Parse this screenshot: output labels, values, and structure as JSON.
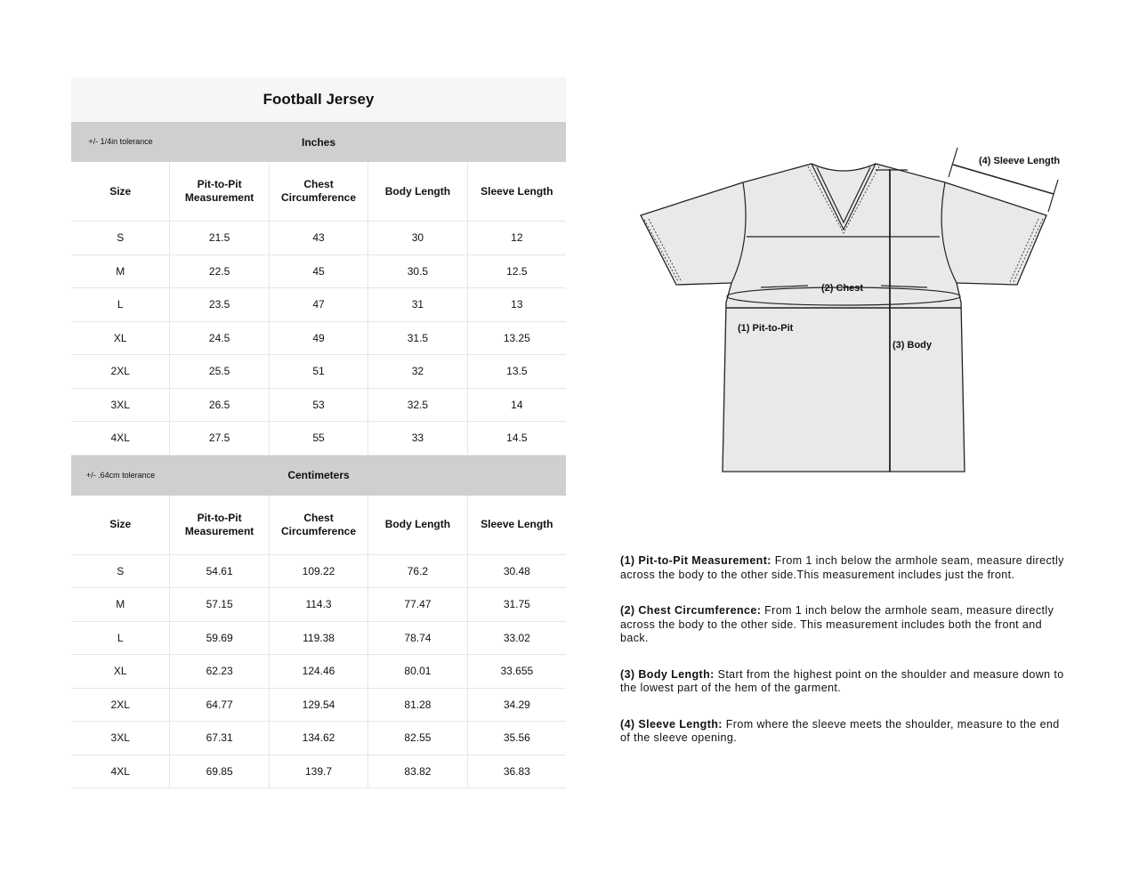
{
  "title": "Football Jersey",
  "columns": [
    "Size",
    "Pit-to-Pit Measurement",
    "Chest Circumference",
    "Body Length",
    "Sleeve Length"
  ],
  "inches": {
    "label": "Inches",
    "tolerance": "+/- 1/4in tolerance",
    "rows": [
      [
        "S",
        "21.5",
        "43",
        "30",
        "12"
      ],
      [
        "M",
        "22.5",
        "45",
        "30.5",
        "12.5"
      ],
      [
        "L",
        "23.5",
        "47",
        "31",
        "13"
      ],
      [
        "XL",
        "24.5",
        "49",
        "31.5",
        "13.25"
      ],
      [
        "2XL",
        "25.5",
        "51",
        "32",
        "13.5"
      ],
      [
        "3XL",
        "26.5",
        "53",
        "32.5",
        "14"
      ],
      [
        "4XL",
        "27.5",
        "55",
        "33",
        "14.5"
      ]
    ]
  },
  "cm": {
    "label": "Centimeters",
    "tolerance": "+/- .64cm tolerance",
    "rows": [
      [
        "S",
        "54.61",
        "109.22",
        "76.2",
        "30.48"
      ],
      [
        "M",
        "57.15",
        "114.3",
        "77.47",
        "31.75"
      ],
      [
        "L",
        "59.69",
        "119.38",
        "78.74",
        "33.02"
      ],
      [
        "XL",
        "62.23",
        "124.46",
        "80.01",
        "33.655"
      ],
      [
        "2XL",
        "64.77",
        "129.54",
        "81.28",
        "34.29"
      ],
      [
        "3XL",
        "67.31",
        "134.62",
        "82.55",
        "35.56"
      ],
      [
        "4XL",
        "69.85",
        "139.7",
        "83.82",
        "36.83"
      ]
    ]
  },
  "diagram": {
    "sleeve": "(4) Sleeve Length",
    "chest": "(2) Chest",
    "pit": "(1) Pit-to-Pit",
    "body": "(3) Body"
  },
  "notes": [
    {
      "term": "(1) Pit-to-Pit Measurement:",
      "text": " From 1 inch below the armhole seam, measure directly across the body to the other side.This measurement includes just the front."
    },
    {
      "term": "(2) Chest Circumference:",
      "text": " From 1 inch below the armhole seam, measure directly across the body to the other side. This measurement includes both the front and back."
    },
    {
      "term": "(3) Body Length:",
      "text": " Start from the highest point on the shoulder and measure down to the lowest part of the hem of the garment."
    },
    {
      "term": "(4) Sleeve Length:",
      "text": " From where the sleeve meets the shoulder, measure to the end of the sleeve opening."
    }
  ]
}
